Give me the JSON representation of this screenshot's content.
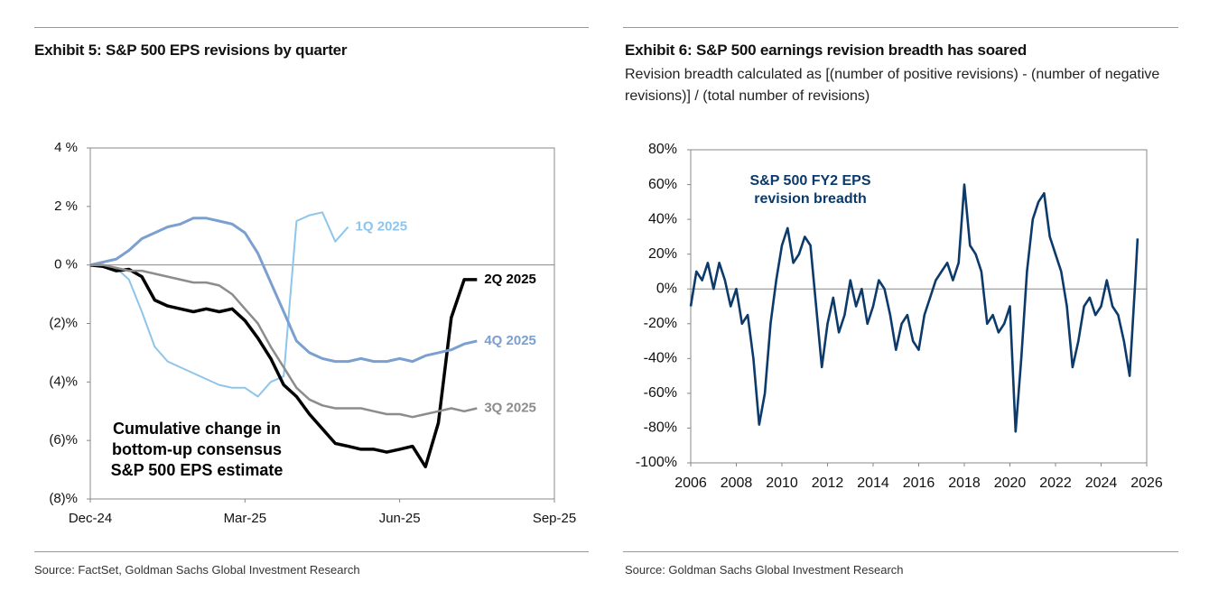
{
  "chart_data": [
    {
      "type": "line",
      "title": "Exhibit 5: S&P 500 EPS revisions by quarter",
      "source": "Source: FactSet, Goldman Sachs Global Investment Research",
      "annotation": [
        "Cumulative change in",
        "bottom-up consensus",
        "S&P 500 EPS estimate"
      ],
      "x": [
        0,
        0.25,
        0.5,
        0.75,
        1,
        1.25,
        1.5,
        1.75,
        2,
        2.25,
        2.5,
        2.75,
        3,
        3.25,
        3.5,
        3.75,
        4,
        4.25,
        4.5,
        4.75,
        5,
        5.25,
        5.5,
        5.75,
        6,
        6.25,
        6.5,
        6.75,
        7,
        7.25,
        7.5
      ],
      "xlim": [
        0,
        9
      ],
      "xticks": [
        {
          "value": 0,
          "label": "Dec-24"
        },
        {
          "value": 3,
          "label": "Mar-25"
        },
        {
          "value": 6,
          "label": "Jun-25"
        },
        {
          "value": 9,
          "label": "Sep-25"
        }
      ],
      "ylim": [
        -8,
        4
      ],
      "yticks": [
        {
          "value": 4,
          "label": "4 %"
        },
        {
          "value": 2,
          "label": "2 %"
        },
        {
          "value": 0,
          "label": "0 %"
        },
        {
          "value": -2,
          "label": "(2)%"
        },
        {
          "value": -4,
          "label": "(4)%"
        },
        {
          "value": -6,
          "label": "(6)%"
        },
        {
          "value": -8,
          "label": "(8)%"
        }
      ],
      "grid": false,
      "legend": "line-end",
      "series": [
        {
          "name": "1Q 2025",
          "color": "#8ec5ea",
          "values": [
            0,
            0,
            -0.1,
            -0.5,
            -1.6,
            -2.8,
            -3.3,
            -3.5,
            -3.7,
            -3.9,
            -4.1,
            -4.2,
            -4.2,
            -4.5,
            -4.0,
            -3.8,
            1.5,
            1.7,
            1.8,
            0.8,
            1.3,
            null,
            null,
            null,
            null,
            null,
            null,
            null,
            null,
            null,
            null
          ]
        },
        {
          "name": "2Q 2025",
          "color": "#000000",
          "values": [
            0,
            -0.05,
            -0.2,
            -0.15,
            -0.4,
            -1.2,
            -1.4,
            -1.5,
            -1.6,
            -1.5,
            -1.6,
            -1.5,
            -1.9,
            -2.5,
            -3.2,
            -4.1,
            -4.5,
            -5.1,
            -5.6,
            -6.1,
            -6.2,
            -6.3,
            -6.3,
            -6.4,
            -6.3,
            -6.2,
            -6.9,
            -5.4,
            -1.8,
            -0.5,
            -0.5
          ]
        },
        {
          "name": "4Q 2025",
          "color": "#7b9fcf",
          "values": [
            0,
            0.1,
            0.2,
            0.5,
            0.9,
            1.1,
            1.3,
            1.4,
            1.6,
            1.6,
            1.5,
            1.4,
            1.1,
            0.4,
            -0.6,
            -1.6,
            -2.6,
            -3.0,
            -3.2,
            -3.3,
            -3.3,
            -3.2,
            -3.3,
            -3.3,
            -3.2,
            -3.3,
            -3.1,
            -3.0,
            -2.9,
            -2.7,
            -2.6
          ]
        },
        {
          "name": "3Q 2025",
          "color": "#8c8c8c",
          "values": [
            0,
            0,
            -0.1,
            -0.2,
            -0.2,
            -0.3,
            -0.4,
            -0.5,
            -0.6,
            -0.6,
            -0.7,
            -1.0,
            -1.5,
            -2.0,
            -2.8,
            -3.5,
            -4.2,
            -4.6,
            -4.8,
            -4.9,
            -4.9,
            -4.9,
            -5.0,
            -5.1,
            -5.1,
            -5.2,
            -5.1,
            -5.0,
            -4.9,
            -5.0,
            -4.9
          ]
        }
      ]
    },
    {
      "type": "line",
      "title": "Exhibit 6: S&P 500 earnings revision breadth has soared",
      "subtitle": "Revision breadth calculated as [(number of positive revisions) - (number of negative revisions)] / (total number of revisions)",
      "source": "Source: Goldman Sachs Global Investment Research",
      "x": [
        2006,
        2006.25,
        2006.5,
        2006.75,
        2007,
        2007.25,
        2007.5,
        2007.75,
        2008,
        2008.25,
        2008.5,
        2008.75,
        2009,
        2009.25,
        2009.5,
        2009.75,
        2010,
        2010.25,
        2010.5,
        2010.75,
        2011,
        2011.25,
        2011.5,
        2011.75,
        2012,
        2012.25,
        2012.5,
        2012.75,
        2013,
        2013.25,
        2013.5,
        2013.75,
        2014,
        2014.25,
        2014.5,
        2014.75,
        2015,
        2015.25,
        2015.5,
        2015.75,
        2016,
        2016.25,
        2016.5,
        2016.75,
        2017,
        2017.25,
        2017.5,
        2017.75,
        2018,
        2018.25,
        2018.5,
        2018.75,
        2019,
        2019.25,
        2019.5,
        2019.75,
        2020,
        2020.25,
        2020.5,
        2020.75,
        2021,
        2021.25,
        2021.5,
        2021.75,
        2022,
        2022.25,
        2022.5,
        2022.75,
        2023,
        2023.25,
        2023.5,
        2023.75,
        2024,
        2024.25,
        2024.5,
        2024.75,
        2025,
        2025.25,
        2025.5,
        2025.6
      ],
      "xlim": [
        2006,
        2026
      ],
      "xticks": [
        2006,
        2008,
        2010,
        2012,
        2014,
        2016,
        2018,
        2020,
        2022,
        2024,
        2026
      ],
      "ylim": [
        -100,
        80
      ],
      "yticks": [
        {
          "value": 80,
          "label": "80%"
        },
        {
          "value": 60,
          "label": "60%"
        },
        {
          "value": 40,
          "label": "40%"
        },
        {
          "value": 20,
          "label": "20%"
        },
        {
          "value": 0,
          "label": "0%"
        },
        {
          "value": -20,
          "label": "-20%"
        },
        {
          "value": -40,
          "label": "-40%"
        },
        {
          "value": -60,
          "label": "-60%"
        },
        {
          "value": -80,
          "label": "-80%"
        },
        {
          "value": -100,
          "label": "-100%"
        }
      ],
      "grid": false,
      "legend": "inside-top-left",
      "series": [
        {
          "name": "S&P 500 FY2 EPS revision breadth",
          "color": "#0b3a6b",
          "values": [
            -10,
            10,
            5,
            15,
            0,
            15,
            5,
            -10,
            0,
            -20,
            -15,
            -40,
            -78,
            -60,
            -20,
            5,
            25,
            35,
            15,
            20,
            30,
            25,
            -10,
            -45,
            -20,
            -5,
            -25,
            -15,
            5,
            -10,
            0,
            -20,
            -10,
            5,
            0,
            -15,
            -35,
            -20,
            -15,
            -30,
            -35,
            -15,
            -5,
            5,
            10,
            15,
            5,
            15,
            60,
            25,
            20,
            10,
            -20,
            -15,
            -25,
            -20,
            -10,
            -82,
            -40,
            10,
            40,
            50,
            55,
            30,
            20,
            10,
            -10,
            -45,
            -30,
            -10,
            -5,
            -15,
            -10,
            5,
            -10,
            -15,
            -30,
            -50,
            5,
            29
          ]
        }
      ]
    }
  ]
}
